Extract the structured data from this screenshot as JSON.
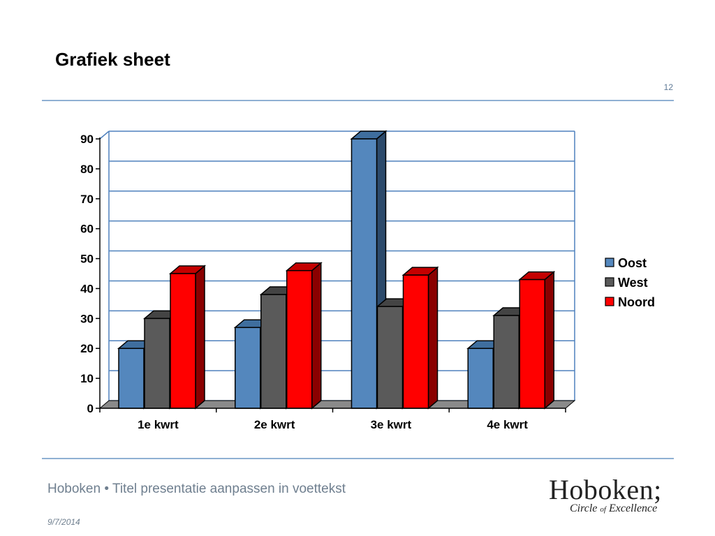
{
  "slide": {
    "title": "Grafiek sheet",
    "number": "12"
  },
  "footer": {
    "text": "Hoboken • Titel presentatie aanpassen in voettekst",
    "date": "9/7/2014"
  },
  "logo": {
    "wordmark": "Hoboken;",
    "tagline": "Circle of Excellence"
  },
  "chart_data": {
    "type": "bar",
    "title": "",
    "xlabel": "",
    "ylabel": "",
    "ylim": [
      0,
      90
    ],
    "yticks": [
      0,
      10,
      20,
      30,
      40,
      50,
      60,
      70,
      80,
      90
    ],
    "grid": true,
    "legend": "right",
    "categories": [
      "1e kwrt",
      "2e kwrt",
      "3e kwrt",
      "4e kwrt"
    ],
    "series": [
      {
        "name": "Oost",
        "values": [
          20,
          27,
          90,
          20
        ],
        "color": "#5487bd",
        "side": "#2c4a6b",
        "top": "#3f6e9e"
      },
      {
        "name": "West",
        "values": [
          30,
          38,
          34,
          31
        ],
        "color": "#5a5a5a",
        "side": "#2e2e2e",
        "top": "#444444"
      },
      {
        "name": "Noord",
        "values": [
          45,
          46,
          44.5,
          43
        ],
        "color": "#ff0000",
        "side": "#8a0000",
        "top": "#c40000"
      }
    ]
  }
}
